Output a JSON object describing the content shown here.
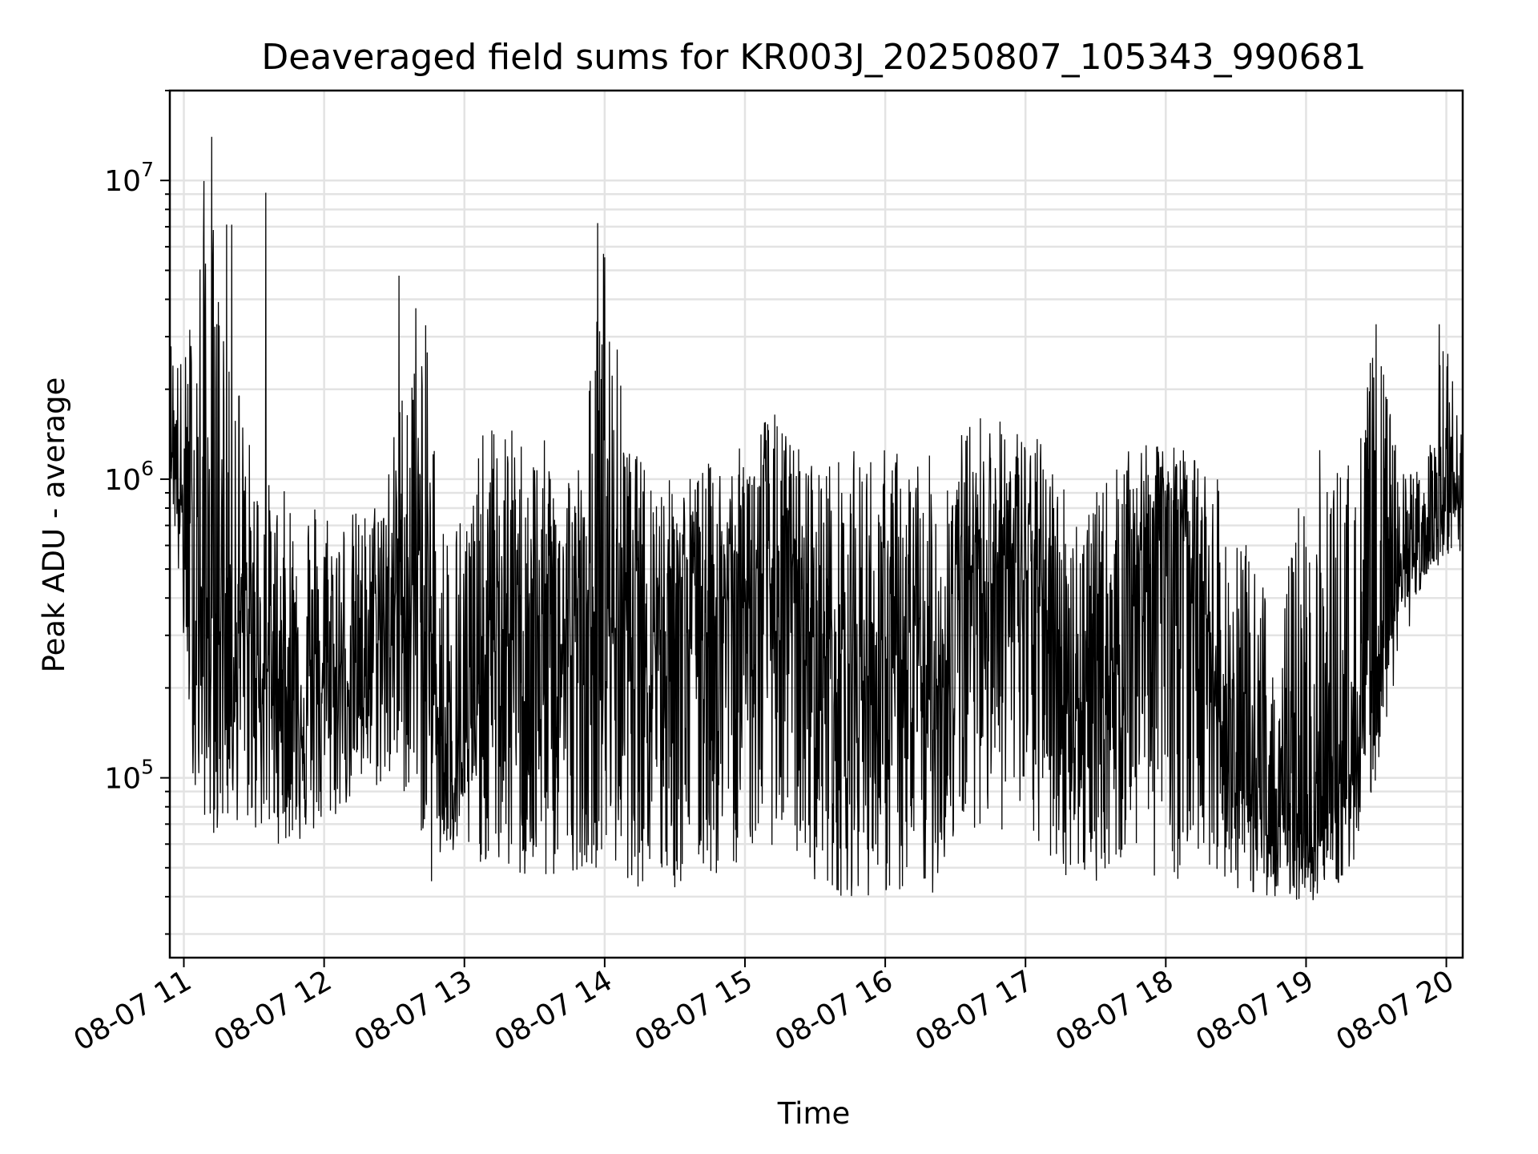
{
  "chart_data": {
    "type": "line",
    "title": "Deaveraged field sums for KR003J_20250807_105343_990681",
    "xlabel": "Time",
    "ylabel": "Peak ADU - average",
    "yscale": "log",
    "xlim": [
      "2025-08-07 10:54",
      "2025-08-07 20:07"
    ],
    "ylim": [
      25000,
      20000000
    ],
    "grid": true,
    "color": "#000000",
    "x_ticks": [
      {
        "value": "2025-08-07 11:00",
        "label": "08-07 11"
      },
      {
        "value": "2025-08-07 12:00",
        "label": "08-07 12"
      },
      {
        "value": "2025-08-07 13:00",
        "label": "08-07 13"
      },
      {
        "value": "2025-08-07 14:00",
        "label": "08-07 14"
      },
      {
        "value": "2025-08-07 15:00",
        "label": "08-07 15"
      },
      {
        "value": "2025-08-07 16:00",
        "label": "08-07 16"
      },
      {
        "value": "2025-08-07 17:00",
        "label": "08-07 17"
      },
      {
        "value": "2025-08-07 18:00",
        "label": "08-07 18"
      },
      {
        "value": "2025-08-07 19:00",
        "label": "08-07 19"
      },
      {
        "value": "2025-08-07 20:00",
        "label": "08-07 20"
      }
    ],
    "y_ticks": [
      {
        "value": 100000,
        "base": "10",
        "exp": "5"
      },
      {
        "value": 1000000,
        "base": "10",
        "exp": "6"
      },
      {
        "value": 10000000,
        "base": "10",
        "exp": "7"
      }
    ],
    "series": [
      {
        "time": [
          "2025-08-07 10:54",
          "2025-08-07 11:00",
          "2025-08-07 11:05",
          "2025-08-07 11:10",
          "2025-08-07 11:15",
          "2025-08-07 11:20",
          "2025-08-07 11:25",
          "2025-08-07 11:30",
          "2025-08-07 11:40",
          "2025-08-07 11:50",
          "2025-08-07 12:00",
          "2025-08-07 12:10",
          "2025-08-07 12:20",
          "2025-08-07 12:30",
          "2025-08-07 12:40",
          "2025-08-07 12:45",
          "2025-08-07 12:50",
          "2025-08-07 13:00",
          "2025-08-07 13:10",
          "2025-08-07 13:20",
          "2025-08-07 13:30",
          "2025-08-07 13:40",
          "2025-08-07 13:50",
          "2025-08-07 14:00",
          "2025-08-07 14:10",
          "2025-08-07 14:20",
          "2025-08-07 14:30",
          "2025-08-07 14:40",
          "2025-08-07 14:50",
          "2025-08-07 15:00",
          "2025-08-07 15:10",
          "2025-08-07 15:20",
          "2025-08-07 15:30",
          "2025-08-07 15:40",
          "2025-08-07 15:50",
          "2025-08-07 16:00",
          "2025-08-07 16:10",
          "2025-08-07 16:20",
          "2025-08-07 16:30",
          "2025-08-07 16:40",
          "2025-08-07 16:50",
          "2025-08-07 17:00",
          "2025-08-07 17:10",
          "2025-08-07 17:20",
          "2025-08-07 17:30",
          "2025-08-07 17:40",
          "2025-08-07 17:50",
          "2025-08-07 18:00",
          "2025-08-07 18:10",
          "2025-08-07 18:20",
          "2025-08-07 18:30",
          "2025-08-07 18:40",
          "2025-08-07 18:50",
          "2025-08-07 19:00",
          "2025-08-07 19:10",
          "2025-08-07 19:20",
          "2025-08-07 19:30",
          "2025-08-07 19:40",
          "2025-08-07 19:50",
          "2025-08-07 20:00",
          "2025-08-07 20:07"
        ],
        "values": [
          1500000,
          700000,
          400000,
          300000,
          450000,
          280000,
          350000,
          250000,
          220000,
          180000,
          200000,
          220000,
          280000,
          380000,
          450000,
          300000,
          140000,
          110000,
          250000,
          300000,
          280000,
          260000,
          270000,
          350000,
          400000,
          380000,
          350000,
          360000,
          380000,
          420000,
          450000,
          400000,
          280000,
          250000,
          230000,
          220000,
          200000,
          180000,
          350000,
          600000,
          550000,
          480000,
          350000,
          200000,
          150000,
          300000,
          600000,
          800000,
          700000,
          250000,
          90000,
          75000,
          70000,
          65000,
          75000,
          110000,
          250000,
          450000,
          650000,
          750000,
          800000
        ],
        "min_envelope": [
          1100000,
          250000,
          80000,
          70000,
          60000,
          70000,
          70000,
          65000,
          60000,
          60000,
          65000,
          80000,
          90000,
          90000,
          80000,
          40000,
          50000,
          55000,
          50000,
          45000,
          40000,
          45000,
          50000,
          50000,
          45000,
          40000,
          40000,
          45000,
          45000,
          55000,
          60000,
          55000,
          45000,
          40000,
          40000,
          40000,
          38000,
          40000,
          60000,
          70000,
          65000,
          60000,
          50000,
          45000,
          45000,
          50000,
          55000,
          40000,
          50000,
          50000,
          42000,
          40000,
          40000,
          38000,
          40000,
          50000,
          100000,
          250000,
          450000,
          500000,
          550000
        ],
        "max_envelope": [
          3200000,
          2500000,
          5500000,
          14000000,
          5000000,
          9000000,
          1800000,
          1200000,
          900000,
          1000000,
          900000,
          800000,
          800000,
          1500000,
          4800000,
          2800000,
          800000,
          900000,
          1600000,
          1500000,
          1400000,
          1300000,
          1200000,
          7200000,
          1300000,
          1100000,
          1000000,
          1100000,
          1200000,
          1300000,
          1800000,
          1400000,
          1200000,
          1200000,
          1300000,
          1300000,
          1300000,
          1200000,
          1400000,
          1700000,
          1600000,
          1500000,
          1300000,
          900000,
          900000,
          1200000,
          1300000,
          1300000,
          1300000,
          1100000,
          700000,
          500000,
          400000,
          1300000,
          1300000,
          1200000,
          3300000,
          1100000,
          1100000,
          3300000,
          1300000
        ],
        "spikes": [
          {
            "time": "2025-08-07 11:12",
            "value": 14000000
          },
          {
            "time": "2025-08-07 11:35",
            "value": 9100000
          },
          {
            "time": "2025-08-07 12:32",
            "value": 4800000
          },
          {
            "time": "2025-08-07 13:57",
            "value": 7200000
          },
          {
            "time": "2025-08-07 19:30",
            "value": 3300000
          },
          {
            "time": "2025-08-07 19:57",
            "value": 3300000
          }
        ]
      }
    ]
  }
}
